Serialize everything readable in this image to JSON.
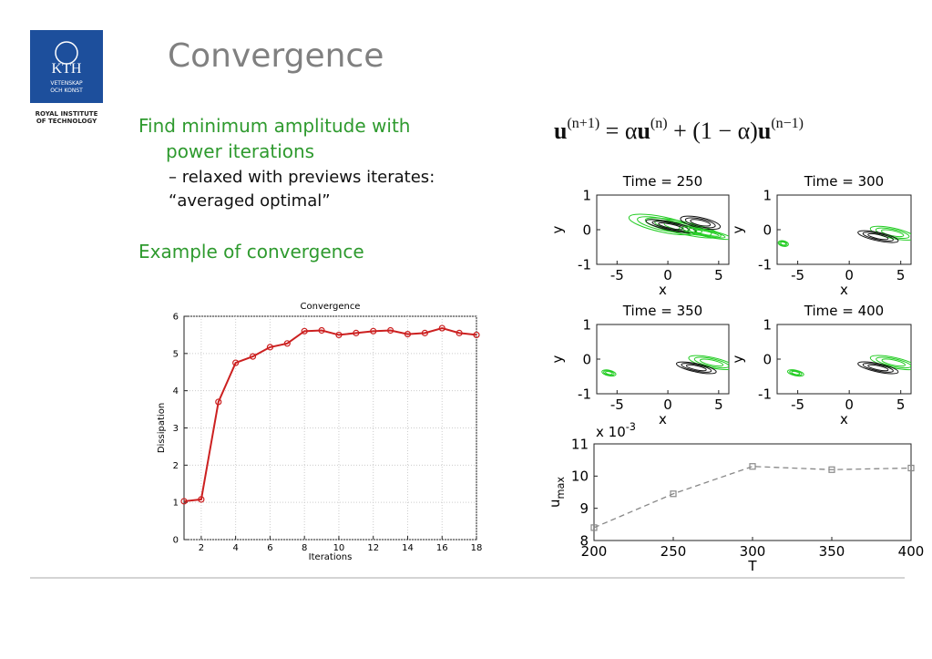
{
  "logo": {
    "name": "KTH",
    "motto": [
      "VETENSKAP",
      "OCH KONST"
    ],
    "caption": [
      "ROYAL INSTITUTE",
      "OF TECHNOLOGY"
    ]
  },
  "header": {
    "title": "Convergence"
  },
  "bullets": [
    {
      "text": [
        "Find minimum amplitude with",
        "power iterations"
      ],
      "sub": [
        "– relaxed with previews iterates:",
        "“averaged optimal”"
      ]
    },
    {
      "text": [
        "Example of convergence"
      ]
    }
  ],
  "equation": [
    "u",
    "(n+1)",
    " = α",
    "u",
    "(n)",
    " + (1 − α)",
    "u",
    "(n−1)"
  ],
  "chart_data": [
    {
      "type": "line",
      "title": "Convergence",
      "xlabel": "Iterations",
      "ylabel": "Dissipation",
      "x": [
        1,
        2,
        3,
        4,
        5,
        6,
        7,
        8,
        9,
        10,
        11,
        12,
        13,
        14,
        15,
        16,
        17,
        18
      ],
      "values": [
        1.03,
        1.08,
        3.7,
        4.75,
        4.92,
        5.17,
        5.27,
        5.6,
        5.62,
        5.5,
        5.55,
        5.6,
        5.62,
        5.52,
        5.55,
        5.68,
        5.55,
        5.5
      ],
      "color": "#cc2020",
      "marker": "circle",
      "grid": true,
      "xlim": [
        1,
        18
      ],
      "xticks": [
        2,
        4,
        6,
        8,
        10,
        12,
        14,
        16,
        18
      ],
      "ylim": [
        0,
        6
      ],
      "yticks": [
        0,
        1,
        2,
        3,
        4,
        5,
        6
      ]
    },
    {
      "type": "contour",
      "title": "Time = 250",
      "xlabel": "x",
      "ylabel": "y",
      "xlim": [
        -7,
        6
      ],
      "xticks": [
        -5,
        0,
        5
      ],
      "ylim": [
        -1,
        1
      ],
      "yticks": [
        -1,
        0,
        1
      ]
    },
    {
      "type": "contour",
      "title": "Time = 300",
      "xlabel": "x",
      "ylabel": "y",
      "xlim": [
        -7,
        6
      ],
      "xticks": [
        -5,
        0,
        5
      ],
      "ylim": [
        -1,
        1
      ],
      "yticks": [
        -1,
        0,
        1
      ]
    },
    {
      "type": "contour",
      "title": "Time = 350",
      "xlabel": "x",
      "ylabel": "y",
      "xlim": [
        -7,
        6
      ],
      "xticks": [
        -5,
        0,
        5
      ],
      "ylim": [
        -1,
        1
      ],
      "yticks": [
        -1,
        0,
        1
      ]
    },
    {
      "type": "contour",
      "title": "Time = 400",
      "xlabel": "x",
      "ylabel": "y",
      "xlim": [
        -7,
        6
      ],
      "xticks": [
        -5,
        0,
        5
      ],
      "ylim": [
        -1,
        1
      ],
      "yticks": [
        -1,
        0,
        1
      ]
    },
    {
      "type": "line",
      "xlabel": "T",
      "ylabel": "u",
      "ylabel_sub": "max",
      "scale_label": "x 10",
      "scale_exp": "-3",
      "x": [
        200,
        250,
        300,
        350,
        400
      ],
      "values": [
        8.4,
        9.45,
        10.3,
        10.2,
        10.25
      ],
      "color": "#888888",
      "marker": "square",
      "line_style": "dashed",
      "grid": false,
      "xlim": [
        200,
        400
      ],
      "xticks": [
        200,
        250,
        300,
        350,
        400
      ],
      "ylim": [
        8,
        11
      ],
      "yticks": [
        8,
        9,
        10,
        11
      ]
    }
  ]
}
